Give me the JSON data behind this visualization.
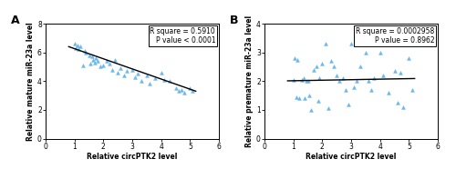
{
  "panel_A": {
    "label": "A",
    "xlabel": "Relative circPTK2 level",
    "ylabel": "Relative mature miR-23a level",
    "xlim": [
      0,
      6
    ],
    "ylim": [
      0,
      8
    ],
    "xticks": [
      0,
      1,
      2,
      3,
      4,
      5,
      6
    ],
    "yticks": [
      0,
      2,
      4,
      6,
      8
    ],
    "annotation": "R square = 0.5910\nP value < 0.0001",
    "scatter_x": [
      1.0,
      1.05,
      1.1,
      1.15,
      1.2,
      1.3,
      1.35,
      1.4,
      1.5,
      1.55,
      1.6,
      1.65,
      1.7,
      1.75,
      1.8,
      1.9,
      2.0,
      2.1,
      2.2,
      2.3,
      2.4,
      2.5,
      2.6,
      2.7,
      2.8,
      3.0,
      3.1,
      3.2,
      3.3,
      3.5,
      3.6,
      3.8,
      4.0,
      4.1,
      4.3,
      4.5,
      4.6,
      4.7,
      4.8,
      5.0,
      5.1
    ],
    "scatter_y": [
      6.6,
      6.3,
      6.5,
      6.2,
      6.4,
      5.1,
      6.1,
      6.0,
      5.8,
      5.2,
      5.7,
      5.5,
      5.3,
      5.6,
      5.4,
      5.0,
      5.1,
      5.4,
      5.2,
      4.8,
      5.5,
      4.6,
      4.9,
      4.4,
      4.7,
      4.8,
      4.3,
      4.5,
      4.0,
      4.4,
      3.8,
      4.2,
      4.6,
      4.1,
      4.0,
      3.5,
      3.3,
      3.4,
      3.2,
      3.5,
      3.3
    ],
    "line_x": [
      0.8,
      5.2
    ],
    "line_y": [
      6.4,
      3.3
    ]
  },
  "panel_B": {
    "label": "B",
    "xlabel": "Relative circPTK2 level",
    "ylabel": "Relative premature miR-23a level",
    "xlim": [
      0,
      6
    ],
    "ylim": [
      0,
      4
    ],
    "xticks": [
      0,
      1,
      2,
      3,
      4,
      5,
      6
    ],
    "yticks": [
      0,
      1,
      2,
      3,
      4
    ],
    "annotation": "R square = 0.0002958\nP value = 0.8962",
    "scatter_x": [
      1.0,
      1.05,
      1.1,
      1.15,
      1.2,
      1.3,
      1.35,
      1.4,
      1.45,
      1.5,
      1.55,
      1.6,
      1.7,
      1.8,
      1.85,
      1.9,
      2.0,
      2.1,
      2.2,
      2.3,
      2.4,
      2.5,
      2.6,
      2.7,
      2.8,
      2.9,
      3.0,
      3.1,
      3.2,
      3.3,
      3.5,
      3.6,
      3.7,
      3.8,
      4.0,
      4.1,
      4.3,
      4.5,
      4.6,
      4.7,
      4.8,
      5.0,
      5.1
    ],
    "scatter_y": [
      2.05,
      2.8,
      1.45,
      2.75,
      1.4,
      2.05,
      2.1,
      1.4,
      2.0,
      2.0,
      1.5,
      1.0,
      2.4,
      2.5,
      1.3,
      2.1,
      2.6,
      3.3,
      1.05,
      2.7,
      2.5,
      2.2,
      2.0,
      2.1,
      1.7,
      1.2,
      3.3,
      1.8,
      2.0,
      2.5,
      3.0,
      2.0,
      1.7,
      2.1,
      3.0,
      2.2,
      1.6,
      2.35,
      1.25,
      2.3,
      1.1,
      2.8,
      1.7
    ],
    "line_x": [
      0.8,
      5.2
    ],
    "line_y": [
      2.01,
      2.09
    ]
  },
  "scatter_color": "#6BB8E8",
  "line_color": "#000000",
  "marker": "^",
  "marker_size": 8,
  "annotation_fontsize": 5.5,
  "axis_label_fontsize": 5.5,
  "tick_fontsize": 5.5,
  "panel_label_fontsize": 9,
  "background_color": "#ffffff"
}
